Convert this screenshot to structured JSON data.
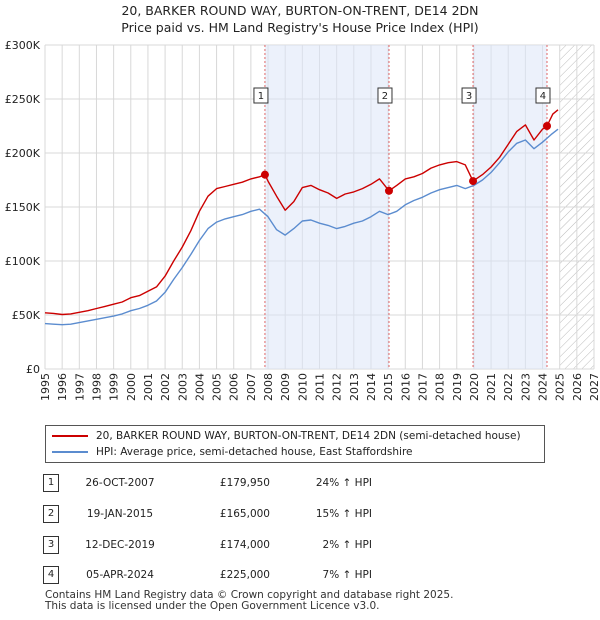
{
  "chart_data": {
    "type": "line",
    "title": "20, BARKER ROUND WAY, BURTON-ON-TRENT, DE14 2DN",
    "subtitle": "Price paid vs. HM Land Registry's House Price Index (HPI)",
    "xlabel": "",
    "ylabel": "",
    "xlim": [
      1995,
      2027
    ],
    "ylim": [
      0,
      300000
    ],
    "x_ticks": [
      "1995",
      "1996",
      "1997",
      "1998",
      "1999",
      "2000",
      "2001",
      "2002",
      "2003",
      "2004",
      "2005",
      "2006",
      "2007",
      "2008",
      "2009",
      "2010",
      "2011",
      "2012",
      "2013",
      "2014",
      "2015",
      "2016",
      "2017",
      "2018",
      "2019",
      "2020",
      "2021",
      "2022",
      "2023",
      "2024",
      "2025",
      "2026",
      "2027"
    ],
    "y_ticks": [
      0,
      50000,
      100000,
      150000,
      200000,
      250000,
      300000
    ],
    "y_tick_labels": [
      "£0",
      "£50K",
      "£100K",
      "£150K",
      "£200K",
      "£250K",
      "£300K"
    ],
    "grid": true,
    "future_hatch_from": 2025.0,
    "series": [
      {
        "name": "20, BARKER ROUND WAY, BURTON-ON-TRENT, DE14 2DN (semi-detached house)",
        "color": "#cc0000",
        "x": [
          1995.0,
          1995.5,
          1996.0,
          1996.5,
          1997.0,
          1997.5,
          1998.0,
          1998.5,
          1999.0,
          1999.5,
          2000.0,
          2000.5,
          2001.0,
          2001.5,
          2002.0,
          2002.5,
          2003.0,
          2003.5,
          2004.0,
          2004.5,
          2005.0,
          2005.5,
          2006.0,
          2006.5,
          2007.0,
          2007.5,
          2007.82,
          2008.0,
          2008.5,
          2009.0,
          2009.5,
          2010.0,
          2010.5,
          2011.0,
          2011.5,
          2012.0,
          2012.5,
          2013.0,
          2013.5,
          2014.0,
          2014.5,
          2015.05,
          2015.5,
          2016.0,
          2016.5,
          2017.0,
          2017.5,
          2018.0,
          2018.5,
          2019.0,
          2019.5,
          2019.95,
          2020.5,
          2021.0,
          2021.5,
          2022.0,
          2022.5,
          2023.0,
          2023.5,
          2024.0,
          2024.26,
          2024.6,
          2024.9
        ],
        "values": [
          52000,
          51500,
          50500,
          51000,
          52500,
          54000,
          56000,
          58000,
          60000,
          62000,
          66000,
          68000,
          72000,
          76000,
          86000,
          100000,
          113000,
          128000,
          146000,
          160000,
          167000,
          169000,
          171000,
          173000,
          176000,
          178000,
          179950,
          174000,
          160000,
          147000,
          155000,
          168000,
          170000,
          166000,
          163000,
          158000,
          162000,
          164000,
          167000,
          171000,
          176000,
          165000,
          170000,
          176000,
          178000,
          181000,
          186000,
          189000,
          191000,
          192000,
          189000,
          174000,
          180000,
          187000,
          196000,
          208000,
          220000,
          226000,
          212000,
          222000,
          225000,
          236000,
          240000
        ]
      },
      {
        "name": "HPI: Average price, semi-detached house, East Staffordshire",
        "color": "#5b8ccf",
        "x": [
          1995.0,
          1995.5,
          1996.0,
          1996.5,
          1997.0,
          1997.5,
          1998.0,
          1998.5,
          1999.0,
          1999.5,
          2000.0,
          2000.5,
          2001.0,
          2001.5,
          2002.0,
          2002.5,
          2003.0,
          2003.5,
          2004.0,
          2004.5,
          2005.0,
          2005.5,
          2006.0,
          2006.5,
          2007.0,
          2007.5,
          2008.0,
          2008.5,
          2009.0,
          2009.5,
          2010.0,
          2010.5,
          2011.0,
          2011.5,
          2012.0,
          2012.5,
          2013.0,
          2013.5,
          2014.0,
          2014.5,
          2015.0,
          2015.5,
          2016.0,
          2016.5,
          2017.0,
          2017.5,
          2018.0,
          2018.5,
          2019.0,
          2019.5,
          2020.0,
          2020.5,
          2021.0,
          2021.5,
          2022.0,
          2022.5,
          2023.0,
          2023.5,
          2024.0,
          2024.5,
          2024.9
        ],
        "values": [
          42000,
          41500,
          41000,
          41500,
          43000,
          44500,
          46000,
          47500,
          49000,
          51000,
          54000,
          56000,
          59000,
          63000,
          71000,
          83000,
          94000,
          106000,
          119000,
          130000,
          136000,
          139000,
          141000,
          143000,
          146000,
          148000,
          141000,
          129000,
          124000,
          130000,
          137000,
          138000,
          135000,
          133000,
          130000,
          132000,
          135000,
          137000,
          141000,
          146000,
          143000,
          146000,
          152000,
          156000,
          159000,
          163000,
          166000,
          168000,
          170000,
          167000,
          170000,
          175000,
          182000,
          191000,
          201000,
          209000,
          212000,
          204000,
          210000,
          217000,
          222000
        ]
      }
    ],
    "sales": [
      {
        "label": "1",
        "x": 2007.82,
        "value": 179950
      },
      {
        "label": "2",
        "x": 2015.05,
        "value": 165000
      },
      {
        "label": "3",
        "x": 2019.95,
        "value": 174000
      },
      {
        "label": "4",
        "x": 2024.26,
        "value": 225000
      }
    ]
  },
  "legend": {
    "property_label": "20, BARKER ROUND WAY, BURTON-ON-TRENT, DE14 2DN (semi-detached house)",
    "hpi_label": "HPI: Average price, semi-detached house, East Staffordshire"
  },
  "sales_table": [
    {
      "num": "1",
      "date": "26-OCT-2007",
      "price": "£179,950",
      "hpi": "24% ↑ HPI"
    },
    {
      "num": "2",
      "date": "19-JAN-2015",
      "price": "£165,000",
      "hpi": "15% ↑ HPI"
    },
    {
      "num": "3",
      "date": "12-DEC-2019",
      "price": "£174,000",
      "hpi": "2% ↑ HPI"
    },
    {
      "num": "4",
      "date": "05-APR-2024",
      "price": "£225,000",
      "hpi": "7% ↑ HPI"
    }
  ],
  "footer": {
    "line1": "Contains HM Land Registry data © Crown copyright and database right 2025.",
    "line2": "This data is licensed under the Open Government Licence v3.0."
  }
}
